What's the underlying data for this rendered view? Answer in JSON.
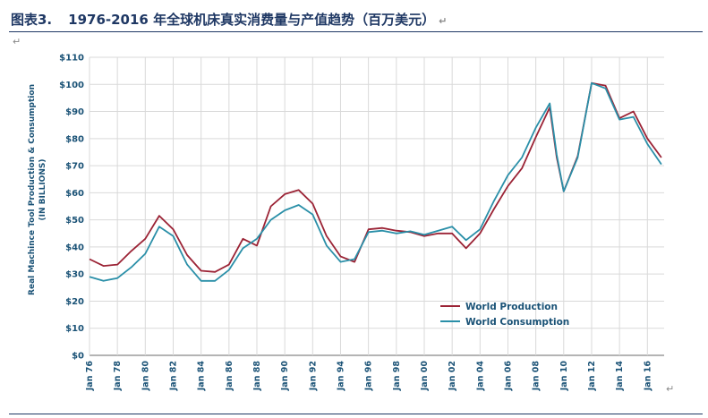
{
  "header": {
    "figure_no": "图表3.",
    "title": "1976-2016 年全球机床真实消费量与产值趋势（百万美元）",
    "para_mark": "↵"
  },
  "colors": {
    "production": "#9b2335",
    "consumption": "#2a8fa8",
    "text": "#1a5276",
    "grid": "#d9d9d9"
  },
  "chart_data": {
    "type": "line",
    "ylabel_line1": "Real Machince Tool Production & Consumption",
    "ylabel_line2": "(IN  BILLIONS)",
    "y_ticks": [
      "$0",
      "$10",
      "$20",
      "$30",
      "$40",
      "$50",
      "$60",
      "$70",
      "$80",
      "$90",
      "$100",
      "$110"
    ],
    "ylim": [
      0,
      110
    ],
    "x_ticks": [
      "Jan 76",
      "Jan 78",
      "Jan 80",
      "Jan 82",
      "Jan 84",
      "Jan 86",
      "Jan 88",
      "Jan 90",
      "Jan 92",
      "Jan 94",
      "Jan 96",
      "Jan 98",
      "Jan 00",
      "Jan 02",
      "Jan 04",
      "Jan 06",
      "Jan 08",
      "Jan 10",
      "Jan 12",
      "Jan 14",
      "Jan 16"
    ],
    "xlim": [
      1976,
      2017.2
    ],
    "grid": true,
    "legend_position": "lower-center",
    "series": [
      {
        "name": "World Production",
        "points": [
          [
            1976,
            35.5
          ],
          [
            1977,
            33
          ],
          [
            1978,
            33.5
          ],
          [
            1979,
            38.5
          ],
          [
            1980,
            43
          ],
          [
            1981,
            51.5
          ],
          [
            1982,
            46.5
          ],
          [
            1983,
            37
          ],
          [
            1984,
            31.2
          ],
          [
            1985,
            30.8
          ],
          [
            1986,
            33.5
          ],
          [
            1987,
            43
          ],
          [
            1988,
            40.5
          ],
          [
            1989,
            55
          ],
          [
            1990,
            59.5
          ],
          [
            1991,
            61
          ],
          [
            1992,
            56
          ],
          [
            1993,
            44
          ],
          [
            1994,
            36.5
          ],
          [
            1995,
            34.5
          ],
          [
            1996,
            46.5
          ],
          [
            1997,
            47
          ],
          [
            1998,
            46
          ],
          [
            1999,
            45.5
          ],
          [
            2000,
            44
          ],
          [
            2001,
            45
          ],
          [
            2002,
            45
          ],
          [
            2003,
            39.5
          ],
          [
            2004,
            45
          ],
          [
            2005,
            54
          ],
          [
            2006,
            62.5
          ],
          [
            2007,
            69
          ],
          [
            2008,
            80.5
          ],
          [
            2009,
            91.5
          ],
          [
            2009.5,
            73
          ],
          [
            2010,
            60.5
          ],
          [
            2011,
            73.5
          ],
          [
            2012,
            100.5
          ],
          [
            2013,
            99.5
          ],
          [
            2014,
            87.5
          ],
          [
            2015,
            90
          ],
          [
            2016,
            80
          ],
          [
            2017,
            73
          ]
        ]
      },
      {
        "name": "World Consumption",
        "points": [
          [
            1976,
            29
          ],
          [
            1977,
            27.5
          ],
          [
            1978,
            28.5
          ],
          [
            1979,
            32.5
          ],
          [
            1980,
            37.5
          ],
          [
            1981,
            47.5
          ],
          [
            1982,
            44
          ],
          [
            1983,
            33.5
          ],
          [
            1984,
            27.5
          ],
          [
            1985,
            27.5
          ],
          [
            1986,
            31.5
          ],
          [
            1987,
            39.5
          ],
          [
            1988,
            43
          ],
          [
            1989,
            50
          ],
          [
            1990,
            53.5
          ],
          [
            1991,
            55.5
          ],
          [
            1992,
            52
          ],
          [
            1993,
            40.5
          ],
          [
            1994,
            34.5
          ],
          [
            1995,
            35.5
          ],
          [
            1996,
            45.5
          ],
          [
            1997,
            46
          ],
          [
            1998,
            45
          ],
          [
            1999,
            45.8
          ],
          [
            2000,
            44.5
          ],
          [
            2001,
            46
          ],
          [
            2002,
            47.5
          ],
          [
            2003,
            42.5
          ],
          [
            2004,
            46.5
          ],
          [
            2005,
            57
          ],
          [
            2006,
            66.5
          ],
          [
            2007,
            73
          ],
          [
            2008,
            84
          ],
          [
            2009,
            93
          ],
          [
            2009.5,
            74
          ],
          [
            2010,
            60.5
          ],
          [
            2011,
            73
          ],
          [
            2012,
            100.5
          ],
          [
            2013,
            98.5
          ],
          [
            2014,
            87
          ],
          [
            2015,
            88
          ],
          [
            2016,
            78
          ],
          [
            2017,
            70.5
          ]
        ]
      }
    ]
  }
}
